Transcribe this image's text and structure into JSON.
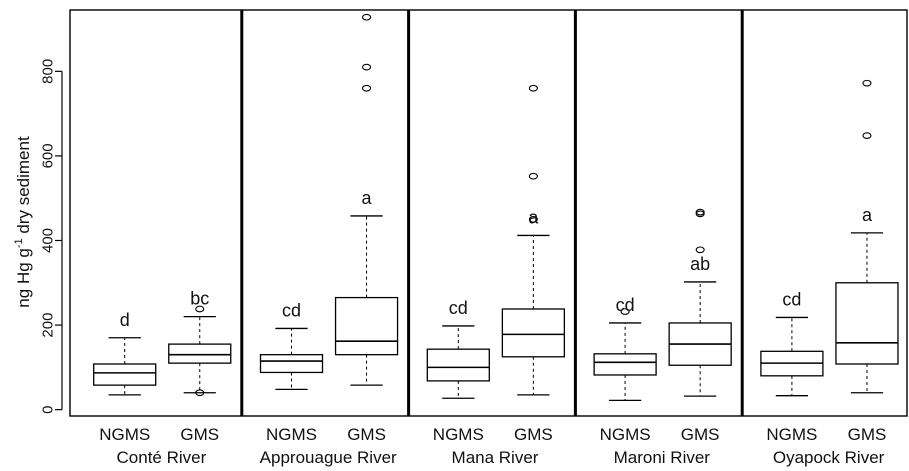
{
  "chart_data": {
    "type": "boxplot",
    "ylabel": {
      "pre": "ng Hg g",
      "sup": "-1",
      "post": " dry sediment"
    },
    "ylim": [
      -15,
      945
    ],
    "yticks": [
      0,
      200,
      400,
      600,
      800
    ],
    "grid": false,
    "groups": [
      {
        "name": "Conté River",
        "name_parts": [
          "Conté",
          "River"
        ],
        "boxes": [
          {
            "category": "NGMS",
            "letter": "d",
            "whisker_low": 35,
            "q1": 58,
            "median": 87,
            "q3": 108,
            "whisker_high": 170,
            "outliers": []
          },
          {
            "category": "GMS",
            "letter": "bc",
            "whisker_low": 40,
            "q1": 110,
            "median": 130,
            "q3": 155,
            "whisker_high": 220,
            "outliers": [
              40,
              238
            ]
          }
        ]
      },
      {
        "name": "Approuague River",
        "name_parts": [
          "Approuague",
          "River"
        ],
        "boxes": [
          {
            "category": "NGMS",
            "letter": "cd",
            "whisker_low": 48,
            "q1": 88,
            "median": 115,
            "q3": 130,
            "whisker_high": 192,
            "outliers": []
          },
          {
            "category": "GMS",
            "letter": "a",
            "whisker_low": 58,
            "q1": 130,
            "median": 162,
            "q3": 265,
            "whisker_high": 458,
            "outliers": [
              760,
              810,
              928
            ]
          }
        ]
      },
      {
        "name": "Mana River",
        "name_parts": [
          "Mana",
          "River"
        ],
        "boxes": [
          {
            "category": "NGMS",
            "letter": "cd",
            "whisker_low": 27,
            "q1": 68,
            "median": 100,
            "q3": 143,
            "whisker_high": 198,
            "outliers": []
          },
          {
            "category": "GMS",
            "letter": "a",
            "whisker_low": 35,
            "q1": 125,
            "median": 178,
            "q3": 238,
            "whisker_high": 412,
            "outliers": [
              450,
              552,
              760
            ]
          }
        ]
      },
      {
        "name": "Maroni River",
        "name_parts": [
          "Maroni",
          "River"
        ],
        "boxes": [
          {
            "category": "NGMS",
            "letter": "cd",
            "whisker_low": 22,
            "q1": 82,
            "median": 112,
            "q3": 132,
            "whisker_high": 205,
            "outliers": [
              232
            ]
          },
          {
            "category": "GMS",
            "letter": "ab",
            "whisker_low": 32,
            "q1": 105,
            "median": 155,
            "q3": 205,
            "whisker_high": 302,
            "outliers": [
              378,
              463,
              467
            ]
          }
        ]
      },
      {
        "name": "Oyapock River",
        "name_parts": [
          "Oyapock",
          "River"
        ],
        "boxes": [
          {
            "category": "NGMS",
            "letter": "cd",
            "whisker_low": 33,
            "q1": 80,
            "median": 110,
            "q3": 138,
            "whisker_high": 218,
            "outliers": []
          },
          {
            "category": "GMS",
            "letter": "a",
            "whisker_low": 40,
            "q1": 108,
            "median": 158,
            "q3": 300,
            "whisker_high": 418,
            "outliers": [
              648,
              772
            ]
          }
        ]
      }
    ]
  }
}
